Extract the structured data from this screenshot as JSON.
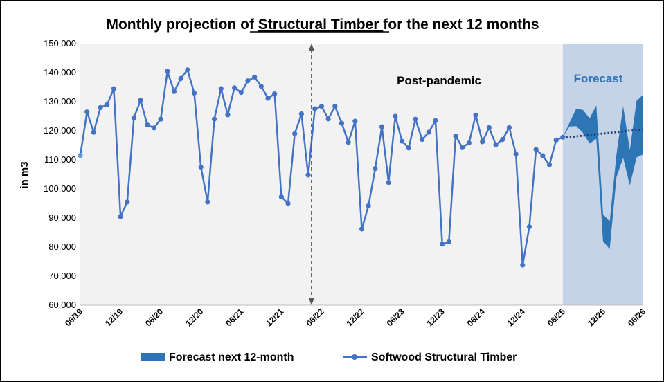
{
  "chart_data": {
    "type": "line",
    "title_parts": [
      "Monthly projection of ",
      "Structural Timber ",
      "for the next 12 months"
    ],
    "ylabel": "in m3",
    "ylim": [
      60000,
      150000
    ],
    "yticks": [
      "60,000",
      "70,000",
      "80,000",
      "90,000",
      "100,000",
      "110,000",
      "120,000",
      "130,000",
      "140,000",
      "150,000"
    ],
    "xticks": [
      {
        "label": "06/19",
        "index": 0
      },
      {
        "label": "12/19",
        "index": 6
      },
      {
        "label": "06/20",
        "index": 12
      },
      {
        "label": "12/20",
        "index": 18
      },
      {
        "label": "06/21",
        "index": 24
      },
      {
        "label": "12/21",
        "index": 30
      },
      {
        "label": "06/22",
        "index": 36
      },
      {
        "label": "12/22",
        "index": 42
      },
      {
        "label": "06/23",
        "index": 48
      },
      {
        "label": "12/23",
        "index": 54
      },
      {
        "label": "06/24",
        "index": 60
      },
      {
        "label": "12/24",
        "index": 66
      },
      {
        "label": "06/25",
        "index": 72
      },
      {
        "label": "12/25",
        "index": 78
      },
      {
        "label": "06/26",
        "index": 84
      }
    ],
    "x_count": 85,
    "series": [
      {
        "name": "Softwood Structural Timber",
        "color": "#4472C4",
        "start_index": 0,
        "values": [
          111500,
          126500,
          119500,
          128000,
          129000,
          134500,
          90500,
          95500,
          124500,
          130500,
          122000,
          121000,
          124000,
          140500,
          133500,
          138000,
          141000,
          133000,
          107500,
          95500,
          124000,
          134500,
          125500,
          134800,
          133200,
          137200,
          138500,
          135300,
          131200,
          132700,
          97300,
          95000,
          119000,
          125800,
          104800,
          127600,
          128400,
          124100,
          128400,
          122600,
          116000,
          123300,
          86200,
          94200,
          107000,
          121400,
          102200,
          125000,
          116400,
          114100,
          124000,
          117000,
          119500,
          123500,
          81000,
          81800,
          118200,
          114200,
          115800,
          125400,
          116200,
          121100,
          115200,
          117000,
          121100,
          112000,
          73800,
          87000,
          113600,
          111400,
          108300,
          116800,
          117800
        ]
      }
    ],
    "forecast": {
      "name": "Forecast next 12-month",
      "color": "#2E75B6",
      "start_index": 72,
      "upper": [
        117800,
        122800,
        127600,
        127200,
        124300,
        128800,
        91300,
        88800,
        111800,
        128500,
        113300,
        130300,
        132500
      ],
      "lower": [
        117800,
        121500,
        121600,
        119300,
        115600,
        117200,
        82000,
        79300,
        104000,
        110700,
        101200,
        110800,
        111900
      ]
    },
    "trend": {
      "start_index": 72,
      "end_index": 84,
      "start_value": 117600,
      "end_value": 120500
    },
    "pandemic_marker_index": 34.5,
    "annotations": {
      "post_pandemic": "Post-pandemic",
      "forecast": "Forecast"
    },
    "legend": {
      "forecast": "Forecast next 12-month",
      "series": "Softwood Structural Timber",
      "position": "bottom"
    },
    "colors": {
      "plot_bg": "#F2F2F2",
      "forecast_bg": "#C5D3E8",
      "forecast_text": "#2E75B6",
      "line": "#4472C4",
      "first_marker": "#5B9BD5",
      "trend": "#1F3864",
      "arrow": "#595959"
    }
  }
}
